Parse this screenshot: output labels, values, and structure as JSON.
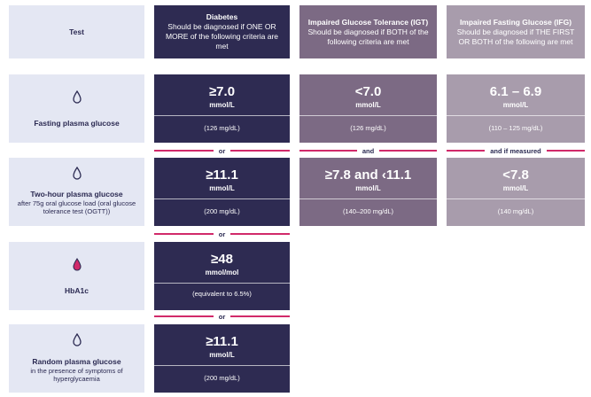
{
  "headers": {
    "test": "Test",
    "diabetes_title": "Diabetes",
    "diabetes_desc": "Should be diagnosed if ONE OR MORE of the following criteria are met",
    "igt_title": "Impaired Glucose Tolerance (IGT)",
    "igt_desc": "Should be diagnosed if BOTH of the following criteria are met",
    "ifg_title": "Impaired Fasting Glucose (IFG)",
    "ifg_desc": "Should be diagnosed if THE FIRST OR BOTH of the following are met"
  },
  "tests": {
    "fasting": {
      "name": "Fasting plasma glucose",
      "icon": "drop-outline-icon"
    },
    "two_hour": {
      "name": "Two-hour plasma glucose",
      "desc": "after 75g oral glucose load (oral glucose tolerance test (OGTT))",
      "icon": "drop-outline-icon"
    },
    "hba1c": {
      "name": "HbA1c",
      "icon": "drop-filled-icon"
    },
    "random": {
      "name": "Random plasma glucose",
      "desc": "in the presence of symptoms of hyperglycaemia",
      "icon": "drop-outline-icon"
    }
  },
  "values": {
    "diab_fasting": {
      "main": "≥7.0",
      "unit": "mmol/L",
      "sub": "(126 mg/dL)"
    },
    "igt_fasting": {
      "main": "<7.0",
      "unit": "mmol/L",
      "sub": "(126 mg/dL)"
    },
    "ifg_fasting": {
      "main": "6.1 – 6.9",
      "unit": "mmol/L",
      "sub": "(110 – 125 mg/dL)"
    },
    "diab_two_hour": {
      "main": "≥11.1",
      "unit": "mmol/L",
      "sub": "(200 mg/dL)"
    },
    "igt_two_hour": {
      "main": "≥7.8 and ‹11.1",
      "unit": "mmol/L",
      "sub": "(140–200 mg/dL)"
    },
    "ifg_two_hour": {
      "main": "<7.8",
      "unit": "mmol/L",
      "sub": "(140 mg/dL)"
    },
    "diab_hba1c": {
      "main": "≥48",
      "unit": "mmol/mol",
      "sub": "(equivalent to 6.5%)"
    },
    "diab_random": {
      "main": "≥11.1",
      "unit": "mmol/L",
      "sub": "(200 mg/dL)"
    }
  },
  "separators": {
    "or": "or",
    "and": "and",
    "and_if_measured": "and if measured"
  },
  "colors": {
    "diabetes": "#2e2b52",
    "igt": "#7c6a84",
    "ifg": "#a89cac",
    "test_bg": "#e4e7f3",
    "accent": "#d12a6a"
  }
}
